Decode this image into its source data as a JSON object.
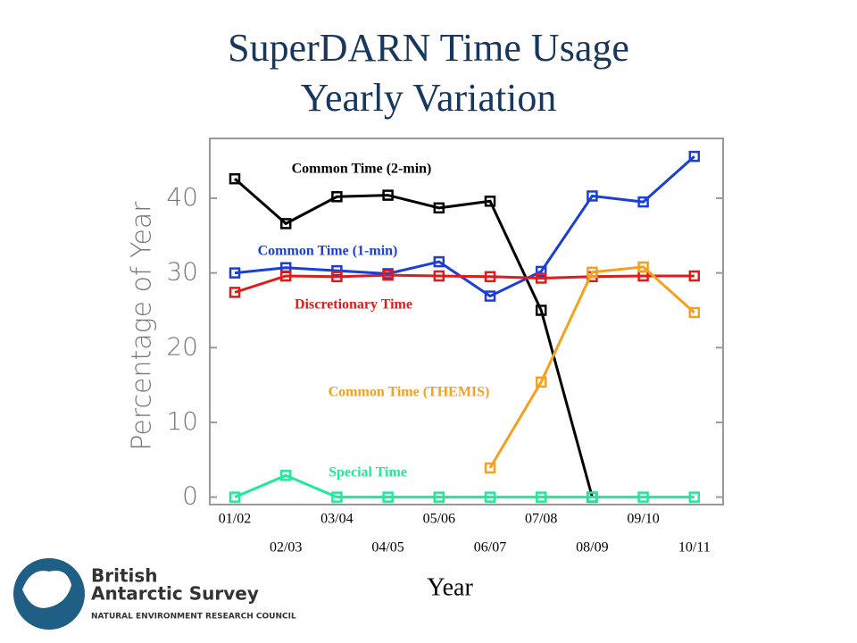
{
  "chart_data": {
    "type": "line",
    "title": "SuperDARN Time Usage",
    "subtitle": "Yearly Variation",
    "y_label": "Percentage of Year",
    "x_label": "Year",
    "categories": [
      "01/02",
      "02/03",
      "03/04",
      "04/05",
      "05/06",
      "06/07",
      "07/08",
      "08/09",
      "09/10",
      "10/11"
    ],
    "ylim": [
      -1,
      48
    ],
    "yticks": [
      0,
      10,
      20,
      30,
      40
    ],
    "series": [
      {
        "name": "Common Time (2-min)",
        "color": "#000000",
        "values": [
          42.6,
          36.6,
          40.2,
          40.4,
          38.7,
          39.6,
          25.0,
          0,
          null,
          null
        ]
      },
      {
        "name": "Common Time (1-min)",
        "color": "#1a3fd6",
        "values": [
          30.0,
          30.7,
          30.3,
          29.9,
          31.5,
          26.9,
          30.2,
          40.3,
          39.5,
          45.6
        ]
      },
      {
        "name": "Discretionary Time",
        "color": "#e01b1b",
        "values": [
          27.4,
          29.6,
          29.5,
          29.7,
          29.6,
          29.5,
          29.3,
          29.5,
          29.6,
          29.6
        ]
      },
      {
        "name": "Common Time (THEMIS)",
        "color": "#f5a01e",
        "values": [
          null,
          null,
          null,
          null,
          null,
          3.9,
          15.4,
          30.1,
          30.8,
          24.7
        ]
      },
      {
        "name": "Special Time",
        "color": "#22e89a",
        "values": [
          0,
          2.9,
          0,
          0,
          0,
          0,
          0,
          0,
          0,
          0
        ]
      }
    ]
  },
  "logo": {
    "line1": "British",
    "line2": "Antarctic Survey",
    "line3": "NATURAL ENVIRONMENT RESEARCH COUNCIL"
  }
}
